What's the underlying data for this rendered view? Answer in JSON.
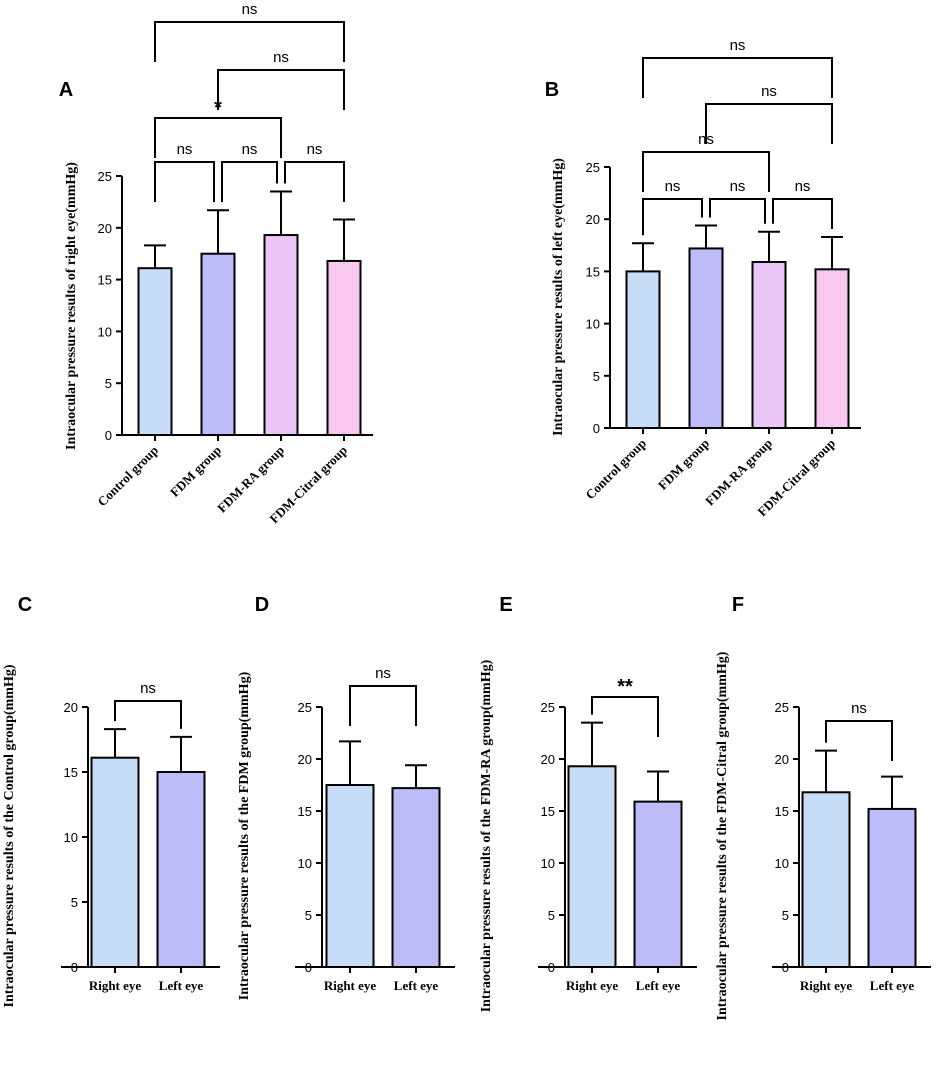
{
  "chart_data": [
    {
      "panel": "A",
      "type": "bar",
      "ylabel": "Intraocular pressure results of right eye(mmHg)",
      "categories": [
        "Control group",
        "FDM group",
        "FDM-RA group",
        "FDM-Citral group"
      ],
      "values": [
        16.1,
        17.5,
        19.3,
        16.8
      ],
      "errors": [
        2.2,
        4.2,
        4.2,
        4.0
      ],
      "colors": [
        "#c7dcf6",
        "#bcbcf8",
        "#ebc6f7",
        "#f8c8ee"
      ],
      "ylim": [
        0,
        25
      ],
      "yticks": [
        0,
        5,
        10,
        15,
        20,
        25
      ],
      "comparisons": [
        {
          "from": 0,
          "to": 1,
          "label": "ns"
        },
        {
          "from": 1,
          "to": 2,
          "label": "ns"
        },
        {
          "from": 2,
          "to": 3,
          "label": "ns"
        },
        {
          "from": 0,
          "to": 2,
          "label": "*"
        },
        {
          "from": 1,
          "to": 3,
          "label": "ns"
        },
        {
          "from": 0,
          "to": 3,
          "label": "ns"
        }
      ]
    },
    {
      "panel": "B",
      "type": "bar",
      "ylabel": "Intraocular pressure results of left eye(mmHg)",
      "categories": [
        "Control group",
        "FDM group",
        "FDM-RA group",
        "FDM-Citral group"
      ],
      "values": [
        15.0,
        17.2,
        15.9,
        15.2
      ],
      "errors": [
        2.7,
        2.2,
        2.9,
        3.1
      ],
      "colors": [
        "#c7dcf6",
        "#bcbcf8",
        "#ebc6f7",
        "#f8c8ee"
      ],
      "ylim": [
        0,
        25
      ],
      "yticks": [
        0,
        5,
        10,
        15,
        20,
        25
      ],
      "comparisons": [
        {
          "from": 0,
          "to": 1,
          "label": "ns"
        },
        {
          "from": 1,
          "to": 2,
          "label": "ns"
        },
        {
          "from": 2,
          "to": 3,
          "label": "ns"
        },
        {
          "from": 0,
          "to": 2,
          "label": "ns"
        },
        {
          "from": 1,
          "to": 3,
          "label": "ns"
        },
        {
          "from": 0,
          "to": 3,
          "label": "ns"
        }
      ]
    },
    {
      "panel": "C",
      "type": "bar",
      "ylabel": "Intraocular pressure results of the Control group(mmHg)",
      "categories": [
        "Right eye",
        "Left eye"
      ],
      "values": [
        16.1,
        15.0
      ],
      "errors": [
        2.2,
        2.7
      ],
      "colors": [
        "#c7dcf6",
        "#bcbcf8"
      ],
      "ylim": [
        0,
        20
      ],
      "yticks": [
        0,
        5,
        10,
        15,
        20
      ],
      "comparisons": [
        {
          "from": 0,
          "to": 1,
          "label": "ns"
        }
      ]
    },
    {
      "panel": "D",
      "type": "bar",
      "ylabel": "Intraocular pressure results of the FDM group(mmHg)",
      "categories": [
        "Right eye",
        "Left eye"
      ],
      "values": [
        17.5,
        17.2
      ],
      "errors": [
        4.2,
        2.2
      ],
      "colors": [
        "#c7dcf6",
        "#bcbcf8"
      ],
      "ylim": [
        0,
        25
      ],
      "yticks": [
        0,
        5,
        10,
        15,
        20,
        25
      ],
      "comparisons": [
        {
          "from": 0,
          "to": 1,
          "label": "ns"
        }
      ]
    },
    {
      "panel": "E",
      "type": "bar",
      "ylabel": "Intraocular pressure results of the FDM-RA group(mmHg)",
      "categories": [
        "Right eye",
        "Left eye"
      ],
      "values": [
        19.3,
        15.9
      ],
      "errors": [
        4.2,
        2.9
      ],
      "colors": [
        "#c7dcf6",
        "#bcbcf8"
      ],
      "ylim": [
        0,
        25
      ],
      "yticks": [
        0,
        5,
        10,
        15,
        20,
        25
      ],
      "comparisons": [
        {
          "from": 0,
          "to": 1,
          "label": "**"
        }
      ]
    },
    {
      "panel": "F",
      "type": "bar",
      "ylabel": "Intraocular pressure results of the FDM-Citral group(mmHg)",
      "categories": [
        "Right eye",
        "Left eye"
      ],
      "values": [
        16.8,
        15.2
      ],
      "errors": [
        4.0,
        3.1
      ],
      "colors": [
        "#c7dcf6",
        "#bcbcf8"
      ],
      "ylim": [
        0,
        25
      ],
      "yticks": [
        0,
        5,
        10,
        15,
        20,
        25
      ],
      "comparisons": [
        {
          "from": 0,
          "to": 1,
          "label": "ns"
        }
      ]
    }
  ]
}
